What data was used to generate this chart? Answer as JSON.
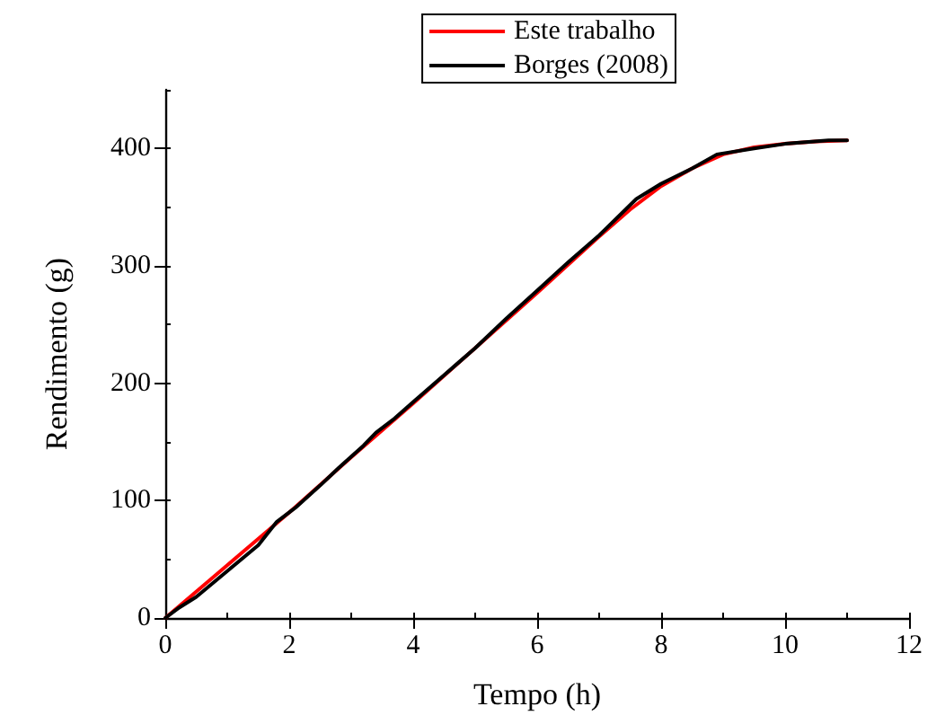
{
  "chart_data": {
    "type": "line",
    "xlabel": "Tempo (h)",
    "ylabel": "Rendimento (g)",
    "xlim": [
      0,
      12
    ],
    "xticks": [
      0,
      2,
      4,
      6,
      8,
      10,
      12
    ],
    "ylim": [
      0,
      450
    ],
    "yticks": [
      0,
      100,
      200,
      300,
      400
    ],
    "grid": false,
    "legend": "top right",
    "marker": "none",
    "line_style": "solid",
    "series": [
      {
        "name": "Este trabalho",
        "color": "#ff0000",
        "x": [
          0,
          1,
          2,
          3,
          4,
          5,
          6,
          7,
          7.5,
          8,
          8.5,
          9,
          9.5,
          10,
          10.5,
          11
        ],
        "values": [
          0,
          45,
          90,
          137,
          183,
          230,
          277,
          325,
          348,
          368,
          383,
          395,
          401,
          404,
          406,
          407
        ]
      },
      {
        "name": "Borges (2008)",
        "color": "#000000",
        "x": [
          0,
          0.2,
          0.5,
          1,
          1.5,
          1.8,
          2.1,
          2.5,
          2.8,
          3.2,
          3.4,
          3.7,
          4,
          4.5,
          5,
          5.5,
          6,
          6.5,
          7,
          7.6,
          8,
          8.5,
          8.9,
          9.5,
          10,
          10.7,
          11
        ],
        "values": [
          0,
          8,
          18,
          40,
          62,
          82,
          94,
          113,
          128,
          147,
          158,
          170,
          184,
          207,
          230,
          255,
          279,
          303,
          326,
          357,
          370,
          383,
          395,
          400,
          404,
          407,
          407
        ]
      }
    ]
  }
}
